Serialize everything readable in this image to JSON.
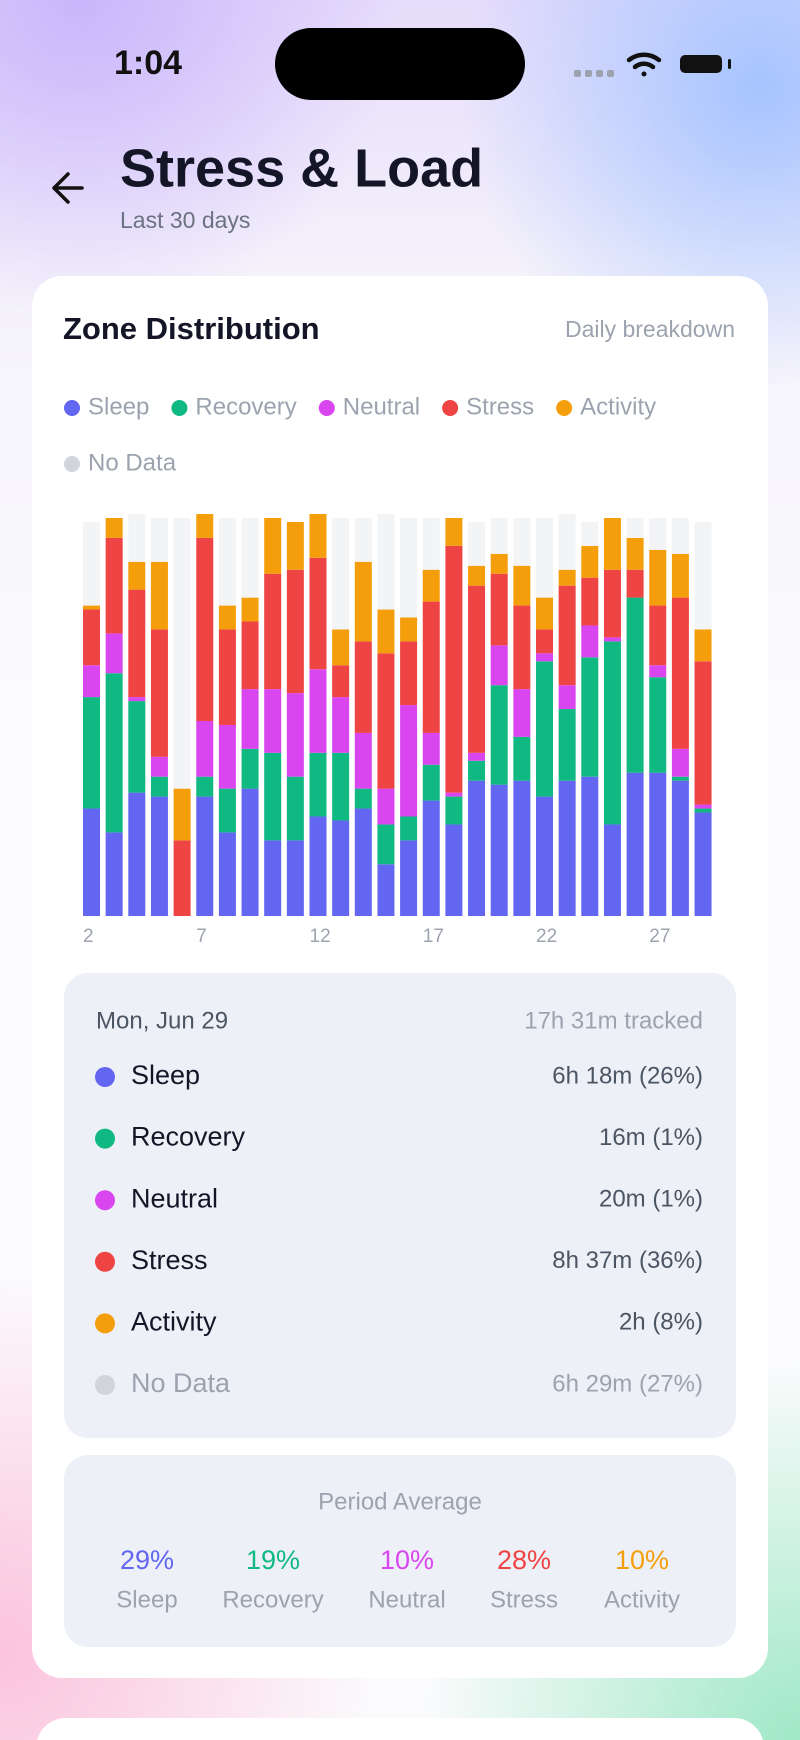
{
  "status_bar": {
    "time": "1:04"
  },
  "header": {
    "title": "Stress & Load",
    "subtitle": "Last 30 days"
  },
  "chart_data": {
    "type": "bar",
    "stacked": true,
    "title": "Zone Distribution",
    "subtitle": "Daily breakdown",
    "categories": [
      "2",
      null,
      null,
      null,
      null,
      "7",
      null,
      null,
      null,
      null,
      "12",
      null,
      null,
      null,
      null,
      "17",
      null,
      null,
      null,
      null,
      "22",
      null,
      null,
      null,
      null,
      "27",
      null,
      null
    ],
    "ylim": [
      0,
      100
    ],
    "series": [
      {
        "name": "Sleep",
        "color": "#6366f1",
        "values": [
          27,
          21,
          31,
          30,
          0,
          30,
          21,
          32,
          19,
          19,
          25,
          24,
          27,
          13,
          19,
          29,
          23,
          34,
          33,
          34,
          30,
          34,
          35,
          23,
          36,
          36,
          34,
          26
        ]
      },
      {
        "name": "Recovery",
        "color": "#10b981",
        "values": [
          28,
          40,
          23,
          5,
          0,
          5,
          11,
          10,
          22,
          16,
          16,
          17,
          5,
          10,
          6,
          9,
          7,
          5,
          25,
          11,
          34,
          18,
          30,
          46,
          44,
          24,
          1,
          1
        ]
      },
      {
        "name": "Neutral",
        "color": "#d946ef",
        "values": [
          8,
          10,
          1,
          5,
          0,
          14,
          16,
          15,
          16,
          21,
          21,
          14,
          14,
          9,
          28,
          8,
          1,
          2,
          10,
          12,
          2,
          6,
          8,
          1,
          0,
          3,
          7,
          1
        ]
      },
      {
        "name": "Stress",
        "color": "#ef4444",
        "values": [
          14,
          24,
          27,
          32,
          19,
          46,
          24,
          17,
          29,
          31,
          28,
          8,
          23,
          34,
          16,
          33,
          62,
          42,
          18,
          21,
          6,
          25,
          12,
          17,
          7,
          15,
          38,
          36
        ]
      },
      {
        "name": "Activity",
        "color": "#f59e0b",
        "values": [
          1,
          5,
          7,
          17,
          13,
          6,
          6,
          6,
          14,
          12,
          11,
          9,
          20,
          11,
          6,
          8,
          7,
          5,
          5,
          10,
          8,
          4,
          8,
          13,
          8,
          14,
          11,
          8
        ]
      },
      {
        "name": "No Data",
        "color": "#d1d5db",
        "values": [
          21,
          0,
          12,
          11,
          68,
          0,
          22,
          20,
          0,
          0,
          0,
          28,
          11,
          24,
          25,
          13,
          0,
          11,
          9,
          12,
          20,
          14,
          6,
          0,
          5,
          8,
          9,
          27
        ]
      }
    ]
  },
  "day_detail": {
    "date": "Mon, Jun 29",
    "tracked": "17h 31m tracked",
    "rows": [
      "6h 18m (26%)",
      "16m (1%)",
      "20m (1%)",
      "8h 37m (36%)",
      "2h (8%)",
      "6h 29m (27%)"
    ]
  },
  "period_average": {
    "title": "Period Average",
    "items": [
      {
        "value": "29%",
        "label": "Sleep"
      },
      {
        "value": "19%",
        "label": "Recovery"
      },
      {
        "value": "10%",
        "label": "Neutral"
      },
      {
        "value": "28%",
        "label": "Stress"
      },
      {
        "value": "10%",
        "label": "Activity"
      }
    ]
  }
}
